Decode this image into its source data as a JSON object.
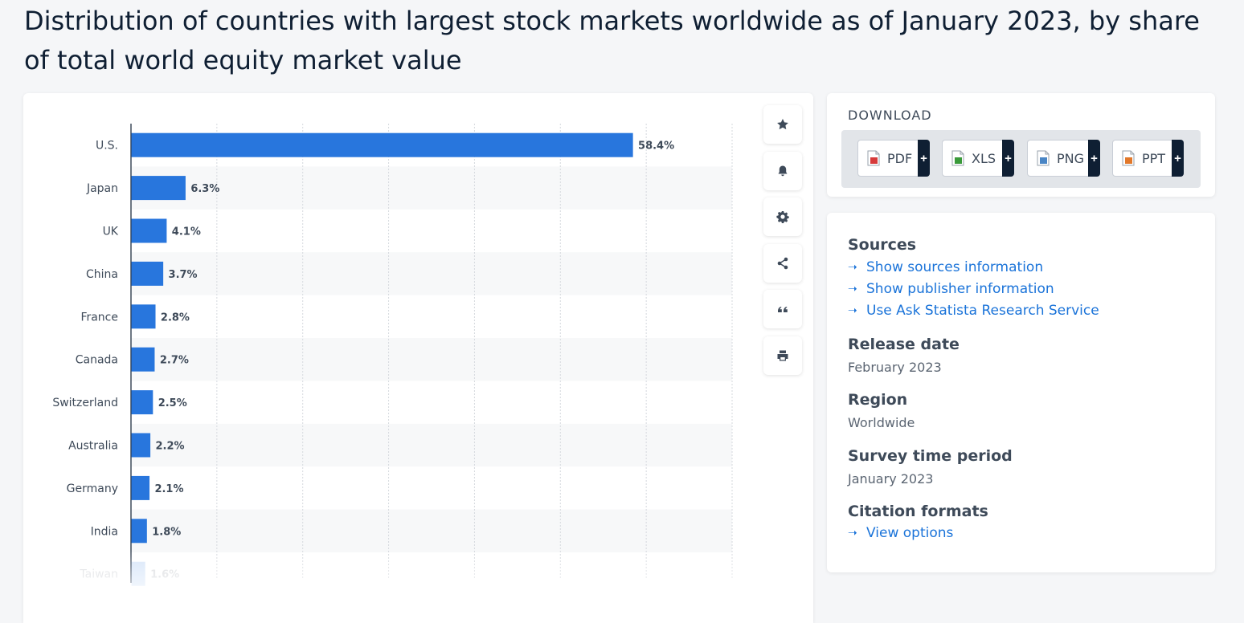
{
  "title": "Distribution of countries with largest stock markets worldwide as of January 2023, by share of total world equity market value",
  "chart_data": {
    "type": "bar",
    "orientation": "horizontal",
    "categories": [
      "U.S.",
      "Japan",
      "UK",
      "China",
      "France",
      "Canada",
      "Switzerland",
      "Australia",
      "Germany",
      "India",
      "Taiwan"
    ],
    "values": [
      58.4,
      6.3,
      4.1,
      3.7,
      2.8,
      2.7,
      2.5,
      2.2,
      2.1,
      1.8,
      1.6
    ],
    "value_labels": [
      "58.4%",
      "6.3%",
      "4.1%",
      "3.7%",
      "2.8%",
      "2.7%",
      "2.5%",
      "2.2%",
      "2.1%",
      "1.8%",
      "1.6%"
    ],
    "xlim": [
      0,
      70
    ],
    "grid": true,
    "bar_color": "#2876dd",
    "title": "",
    "xlabel": "",
    "ylabel": ""
  },
  "toolbar": {
    "buttons": [
      {
        "name": "star-icon"
      },
      {
        "name": "bell-icon"
      },
      {
        "name": "gear-icon"
      },
      {
        "name": "share-icon"
      },
      {
        "name": "quote-icon"
      },
      {
        "name": "print-icon"
      }
    ]
  },
  "download": {
    "title": "DOWNLOAD",
    "buttons": [
      {
        "label": "PDF",
        "plus": "+",
        "icon": "pdf-file-icon",
        "color": "#d63a3a"
      },
      {
        "label": "XLS",
        "plus": "+",
        "icon": "xls-file-icon",
        "color": "#3a9a3a"
      },
      {
        "label": "PNG",
        "plus": "+",
        "icon": "png-file-icon",
        "color": "#4a86c5"
      },
      {
        "label": "PPT",
        "plus": "+",
        "icon": "ppt-file-icon",
        "color": "#e2782a"
      }
    ]
  },
  "info": {
    "sources_head": "Sources",
    "links": [
      "Show sources information",
      "Show publisher information",
      "Use Ask Statista Research Service"
    ],
    "release_head": "Release date",
    "release_val": "February 2023",
    "region_head": "Region",
    "region_val": "Worldwide",
    "survey_head": "Survey time period",
    "survey_val": "January 2023",
    "citation_head": "Citation formats",
    "citation_link": "View options"
  },
  "colors": {
    "accent": "#1a73d9",
    "bar": "#2876dd",
    "dark": "#0f1f33"
  }
}
